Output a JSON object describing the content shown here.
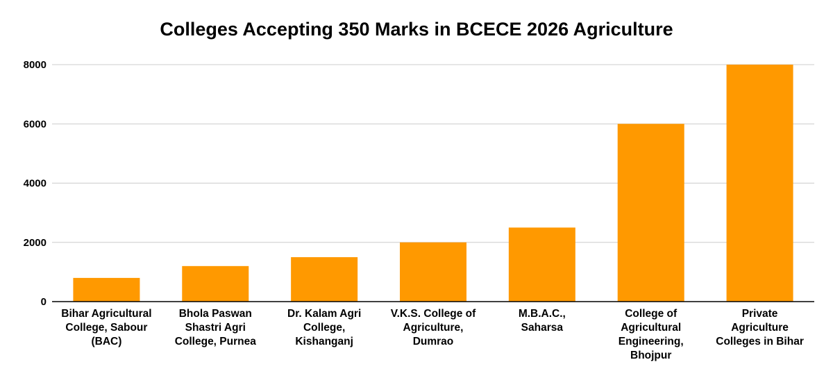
{
  "chart_data": {
    "type": "bar",
    "title": "Colleges Accepting 350 Marks in BCECE 2026 Agriculture",
    "xlabel": "",
    "ylabel": "",
    "categories": [
      "Bihar Agricultural College, Sabour (BAC)",
      "Bhola Paswan Shastri Agri College, Purnea",
      "Dr. Kalam Agri College, Kishanganj",
      "V.K.S. College of Agriculture, Dumrao",
      "M.B.A.C., Saharsa",
      "College of Agricultural Engineering, Bhojpur",
      "Private Agriculture Colleges in Bihar"
    ],
    "values": [
      800,
      1200,
      1500,
      2000,
      2500,
      6000,
      8000
    ],
    "ylim": [
      0,
      8000
    ],
    "yticks": [
      "0",
      "2000",
      "4000",
      "6000",
      "8000"
    ],
    "grid": true,
    "legend": "none",
    "colors": {
      "bar": "#ff9900",
      "grid": "#cccccc",
      "axis": "#000000"
    }
  }
}
